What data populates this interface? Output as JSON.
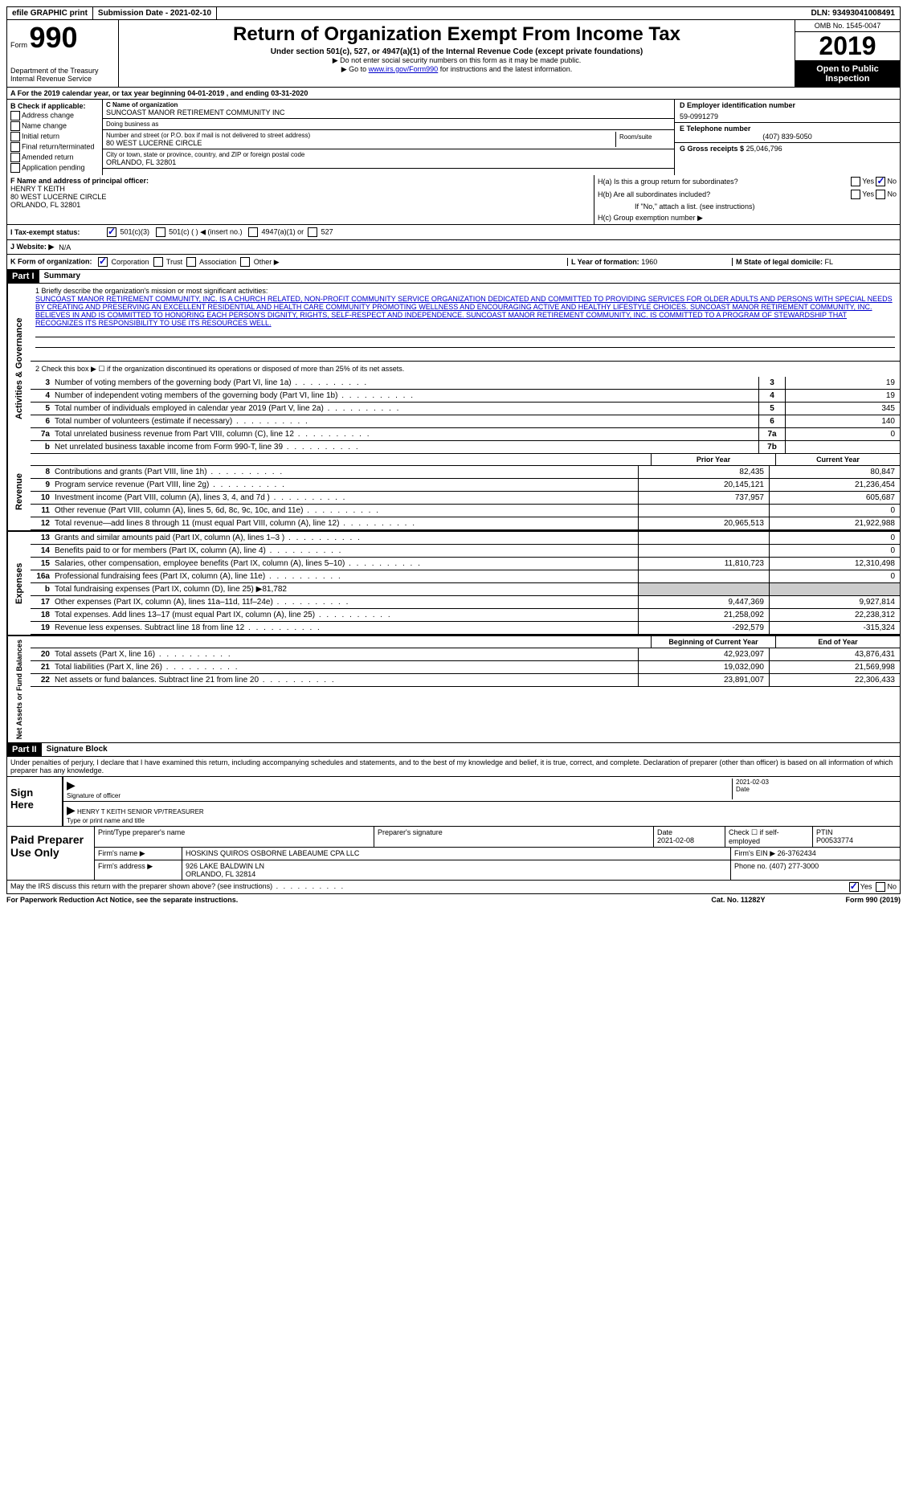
{
  "topbar": {
    "efile": "efile GRAPHIC print",
    "submission": "Submission Date - 2021-02-10",
    "dln": "DLN: 93493041008491"
  },
  "header": {
    "form_label": "Form",
    "form_num": "990",
    "dept": "Department of the Treasury\nInternal Revenue Service",
    "title": "Return of Organization Exempt From Income Tax",
    "sub": "Under section 501(c), 527, or 4947(a)(1) of the Internal Revenue Code (except private foundations)",
    "instr1": "▶ Do not enter social security numbers on this form as it may be made public.",
    "instr2_pre": "▶ Go to ",
    "instr2_link": "www.irs.gov/Form990",
    "instr2_post": " for instructions and the latest information.",
    "omb": "OMB No. 1545-0047",
    "year": "2019",
    "open_public": "Open to Public Inspection"
  },
  "line_a": "A For the 2019 calendar year, or tax year beginning 04-01-2019   , and ending 03-31-2020",
  "box_b": {
    "title": "B Check if applicable:",
    "items": [
      "Address change",
      "Name change",
      "Initial return",
      "Final return/terminated",
      "Amended return",
      "Application pending"
    ]
  },
  "box_c": {
    "name_lbl": "C Name of organization",
    "name": "SUNCOAST MANOR RETIREMENT COMMUNITY INC",
    "dba_lbl": "Doing business as",
    "dba": "",
    "street_lbl": "Number and street (or P.O. box if mail is not delivered to street address)",
    "street": "80 WEST LUCERNE CIRCLE",
    "room_lbl": "Room/suite",
    "city_lbl": "City or town, state or province, country, and ZIP or foreign postal code",
    "city": "ORLANDO, FL  32801"
  },
  "box_d": {
    "ein_lbl": "D Employer identification number",
    "ein": "59-0991279",
    "tel_lbl": "E Telephone number",
    "tel": "(407) 839-5050",
    "gross_lbl": "G Gross receipts $",
    "gross": "25,046,796"
  },
  "box_f": {
    "lbl": "F  Name and address of principal officer:",
    "name": "HENRY T KEITH",
    "addr1": "80 WEST LUCERNE CIRCLE",
    "addr2": "ORLANDO, FL  32801"
  },
  "box_h": {
    "a": "H(a)  Is this a group return for subordinates?",
    "b": "H(b)  Are all subordinates included?",
    "note": "If \"No,\" attach a list. (see instructions)",
    "c": "H(c)  Group exemption number ▶"
  },
  "row_i": {
    "lbl": "I   Tax-exempt status:",
    "opts": [
      "501(c)(3)",
      "501(c) (  ) ◀ (insert no.)",
      "4947(a)(1) or",
      "527"
    ]
  },
  "row_j": {
    "lbl": "J   Website: ▶",
    "val": "N/A"
  },
  "row_k": {
    "lbl": "K Form of organization:",
    "opts": [
      "Corporation",
      "Trust",
      "Association",
      "Other ▶"
    ],
    "l_lbl": "L Year of formation:",
    "l_val": "1960",
    "m_lbl": "M State of legal domicile:",
    "m_val": "FL"
  },
  "part1": {
    "header": "Part I",
    "title": "Summary",
    "side_activities": "Activities & Governance",
    "side_revenue": "Revenue",
    "side_expenses": "Expenses",
    "side_netassets": "Net Assets or Fund Balances",
    "q1_lbl": "1   Briefly describe the organization's mission or most significant activities:",
    "q1_text": "SUNCOAST MANOR RETIREMENT COMMUNITY, INC. IS A CHURCH RELATED, NON-PROFIT COMMUNITY SERVICE ORGANIZATION DEDICATED AND COMMITTED TO PROVIDING SERVICES FOR OLDER ADULTS AND PERSONS WITH SPECIAL NEEDS BY CREATING AND PRESERVING AN EXCELLENT RESIDENTIAL AND HEALTH CARE COMMUNITY PROMOTING WELLNESS AND ENCOURAGING ACTIVE AND HEALTHY LIFESTYLE CHOICES. SUNCOAST MANOR RETIREMENT COMMUNITY, INC. BELIEVES IN AND IS COMMITTED TO HONORING EACH PERSON'S DIGNITY, RIGHTS, SELF-RESPECT AND INDEPENDENCE. SUNCOAST MANOR RETIREMENT COMMUNITY, INC. IS COMMITTED TO A PROGRAM OF STEWARDSHIP THAT RECOGNIZES ITS RESPONSIBILITY TO USE ITS RESOURCES WELL.",
    "q2": "2   Check this box ▶ ☐  if the organization discontinued its operations or disposed of more than 25% of its net assets.",
    "rows_gov": [
      {
        "n": "3",
        "desc": "Number of voting members of the governing body (Part VI, line 1a)",
        "box": "3",
        "val": "19"
      },
      {
        "n": "4",
        "desc": "Number of independent voting members of the governing body (Part VI, line 1b)",
        "box": "4",
        "val": "19"
      },
      {
        "n": "5",
        "desc": "Total number of individuals employed in calendar year 2019 (Part V, line 2a)",
        "box": "5",
        "val": "345"
      },
      {
        "n": "6",
        "desc": "Total number of volunteers (estimate if necessary)",
        "box": "6",
        "val": "140"
      },
      {
        "n": "7a",
        "desc": "Total unrelated business revenue from Part VIII, column (C), line 12",
        "box": "7a",
        "val": "0"
      },
      {
        "n": "b",
        "desc": "Net unrelated business taxable income from Form 990-T, line 39",
        "box": "7b",
        "val": ""
      }
    ],
    "col_head1": "Prior Year",
    "col_head2": "Current Year",
    "rows_rev": [
      {
        "n": "8",
        "desc": "Contributions and grants (Part VIII, line 1h)",
        "c1": "82,435",
        "c2": "80,847"
      },
      {
        "n": "9",
        "desc": "Program service revenue (Part VIII, line 2g)",
        "c1": "20,145,121",
        "c2": "21,236,454"
      },
      {
        "n": "10",
        "desc": "Investment income (Part VIII, column (A), lines 3, 4, and 7d )",
        "c1": "737,957",
        "c2": "605,687"
      },
      {
        "n": "11",
        "desc": "Other revenue (Part VIII, column (A), lines 5, 6d, 8c, 9c, 10c, and 11e)",
        "c1": "",
        "c2": "0"
      },
      {
        "n": "12",
        "desc": "Total revenue—add lines 8 through 11 (must equal Part VIII, column (A), line 12)",
        "c1": "20,965,513",
        "c2": "21,922,988"
      }
    ],
    "rows_exp": [
      {
        "n": "13",
        "desc": "Grants and similar amounts paid (Part IX, column (A), lines 1–3 )",
        "c1": "",
        "c2": "0"
      },
      {
        "n": "14",
        "desc": "Benefits paid to or for members (Part IX, column (A), line 4)",
        "c1": "",
        "c2": "0"
      },
      {
        "n": "15",
        "desc": "Salaries, other compensation, employee benefits (Part IX, column (A), lines 5–10)",
        "c1": "11,810,723",
        "c2": "12,310,498"
      },
      {
        "n": "16a",
        "desc": "Professional fundraising fees (Part IX, column (A), line 11e)",
        "c1": "",
        "c2": "0"
      },
      {
        "n": "b",
        "desc": "Total fundraising expenses (Part IX, column (D), line 25) ▶81,782",
        "c1": "grey",
        "c2": "grey"
      },
      {
        "n": "17",
        "desc": "Other expenses (Part IX, column (A), lines 11a–11d, 11f–24e)",
        "c1": "9,447,369",
        "c2": "9,927,814"
      },
      {
        "n": "18",
        "desc": "Total expenses. Add lines 13–17 (must equal Part IX, column (A), line 25)",
        "c1": "21,258,092",
        "c2": "22,238,312"
      },
      {
        "n": "19",
        "desc": "Revenue less expenses. Subtract line 18 from line 12",
        "c1": "-292,579",
        "c2": "-315,324"
      }
    ],
    "col_head3": "Beginning of Current Year",
    "col_head4": "End of Year",
    "rows_net": [
      {
        "n": "20",
        "desc": "Total assets (Part X, line 16)",
        "c1": "42,923,097",
        "c2": "43,876,431"
      },
      {
        "n": "21",
        "desc": "Total liabilities (Part X, line 26)",
        "c1": "19,032,090",
        "c2": "21,569,998"
      },
      {
        "n": "22",
        "desc": "Net assets or fund balances. Subtract line 21 from line 20",
        "c1": "23,891,007",
        "c2": "22,306,433"
      }
    ]
  },
  "part2": {
    "header": "Part II",
    "title": "Signature Block",
    "penalty": "Under penalties of perjury, I declare that I have examined this return, including accompanying schedules and statements, and to the best of my knowledge and belief, it is true, correct, and complete. Declaration of preparer (other than officer) is based on all information of which preparer has any knowledge.",
    "sign_here": "Sign Here",
    "sig_officer": "Signature of officer",
    "sig_date": "2021-02-03",
    "sig_date_lbl": "Date",
    "sig_name": "HENRY T KEITH  SENIOR VP/TREASURER",
    "sig_name_lbl": "Type or print name and title",
    "paid_prep": "Paid Preparer Use Only",
    "prep_name_lbl": "Print/Type preparer's name",
    "prep_sig_lbl": "Preparer's signature",
    "prep_date_lbl": "Date",
    "prep_date": "2021-02-08",
    "self_emp": "Check ☐ if self-employed",
    "ptin_lbl": "PTIN",
    "ptin": "P00533774",
    "firm_name_lbl": "Firm's name    ▶",
    "firm_name": "HOSKINS QUIROS OSBORNE LABEAUME CPA LLC",
    "firm_ein_lbl": "Firm's EIN ▶",
    "firm_ein": "26-3762434",
    "firm_addr_lbl": "Firm's address ▶",
    "firm_addr": "926 LAKE BALDWIN LN\nORLANDO, FL  32814",
    "phone_lbl": "Phone no.",
    "phone": "(407) 277-3000",
    "discuss": "May the IRS discuss this return with the preparer shown above? (see instructions)"
  },
  "footer": {
    "left": "For Paperwork Reduction Act Notice, see the separate instructions.",
    "mid": "Cat. No. 11282Y",
    "right": "Form 990 (2019)"
  }
}
